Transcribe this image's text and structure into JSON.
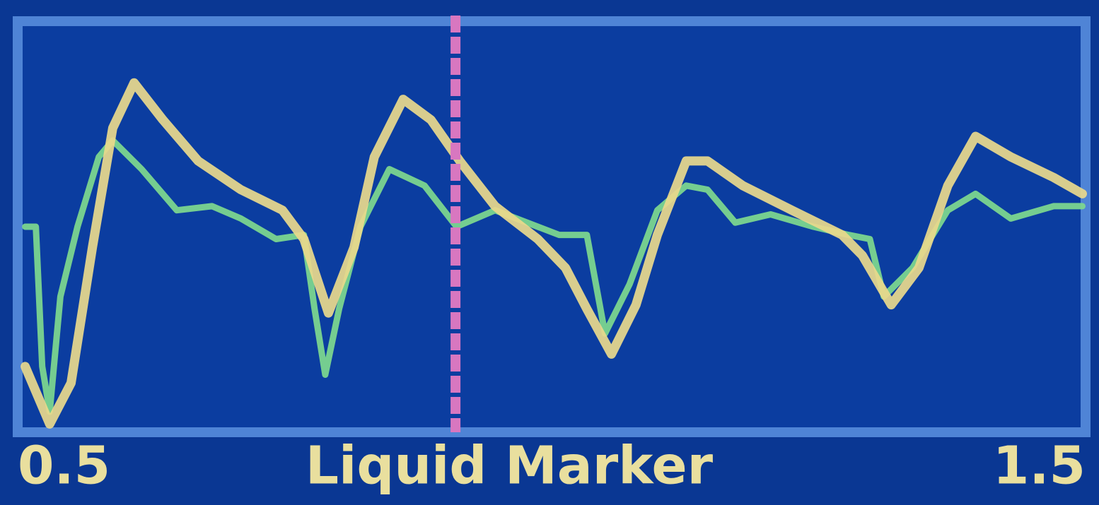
{
  "chart_data": {
    "type": "line",
    "xlabel": "Liquid Marker",
    "xlim": [
      0.5,
      1.5
    ],
    "xticks": [
      0.5,
      1.5
    ],
    "ylim": [
      0,
      100
    ],
    "marker_x": 0.91,
    "marker_color": "#d877c0",
    "series": [
      {
        "color": "#7fd98e",
        "x": [
          0.507,
          0.517,
          0.523,
          0.53,
          0.54,
          0.556,
          0.576,
          0.589,
          0.616,
          0.649,
          0.682,
          0.709,
          0.742,
          0.768,
          0.778,
          0.788,
          0.801,
          0.821,
          0.848,
          0.881,
          0.911,
          0.947,
          0.987,
          1.007,
          1.033,
          1.05,
          1.073,
          1.099,
          1.126,
          1.146,
          1.172,
          1.205,
          1.245,
          1.278,
          1.298,
          1.311,
          1.338,
          1.371,
          1.397,
          1.43,
          1.47,
          1.497
        ],
        "values": [
          50,
          50,
          16,
          5,
          33,
          50,
          67,
          71,
          64,
          54,
          55,
          52,
          47,
          48,
          30,
          14,
          30,
          50,
          64,
          60,
          50,
          54,
          50,
          48,
          48,
          24,
          36,
          54,
          60,
          59,
          51,
          53,
          50,
          48,
          47,
          33,
          40,
          54,
          58,
          52,
          55,
          55
        ]
      },
      {
        "color": "#ead98c",
        "x": [
          0.507,
          0.53,
          0.55,
          0.57,
          0.589,
          0.609,
          0.636,
          0.669,
          0.709,
          0.748,
          0.768,
          0.791,
          0.815,
          0.834,
          0.861,
          0.887,
          0.914,
          0.947,
          0.987,
          1.013,
          1.033,
          1.056,
          1.079,
          1.099,
          1.126,
          1.146,
          1.179,
          1.225,
          1.272,
          1.291,
          1.318,
          1.344,
          1.371,
          1.397,
          1.43,
          1.47,
          1.497
        ],
        "values": [
          16,
          2,
          12,
          45,
          74,
          85,
          76,
          66,
          59,
          54,
          47,
          29,
          45,
          67,
          81,
          76,
          66,
          55,
          47,
          40,
          30,
          19,
          31,
          48,
          66,
          66,
          60,
          54,
          48,
          43,
          31,
          40,
          60,
          72,
          67,
          62,
          58
        ]
      }
    ]
  }
}
